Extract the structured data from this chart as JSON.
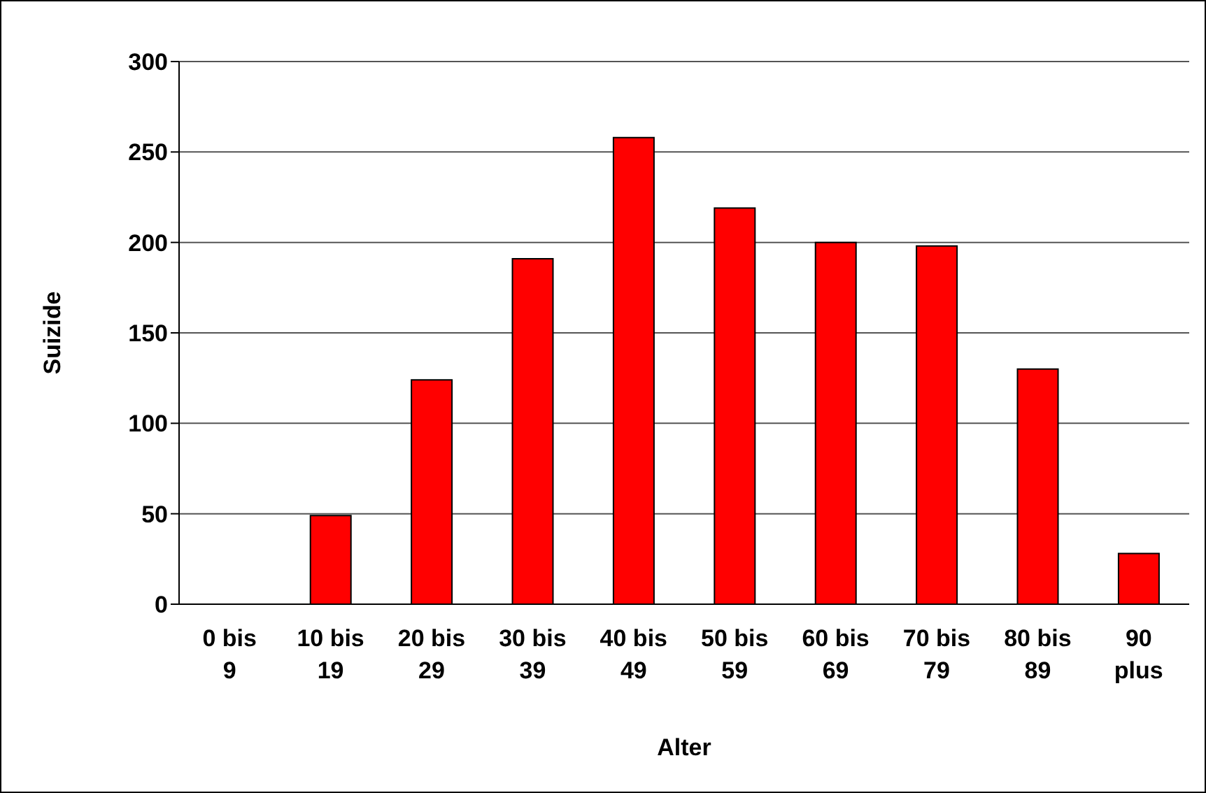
{
  "chart_data": {
    "type": "bar",
    "xlabel": "Alter",
    "ylabel": "Suizide",
    "categories": [
      "0 bis 9",
      "10 bis 19",
      "20 bis 29",
      "30 bis 39",
      "40 bis 49",
      "50 bis 59",
      "60 bis 69",
      "70 bis 79",
      "80 bis 89",
      "90 plus"
    ],
    "values": [
      0,
      49,
      124,
      191,
      258,
      219,
      200,
      198,
      130,
      28
    ],
    "color": "#ff0000",
    "ylim": [
      0,
      300
    ],
    "yticks": [
      0,
      50,
      100,
      150,
      200,
      250,
      300
    ],
    "grid": "y"
  }
}
